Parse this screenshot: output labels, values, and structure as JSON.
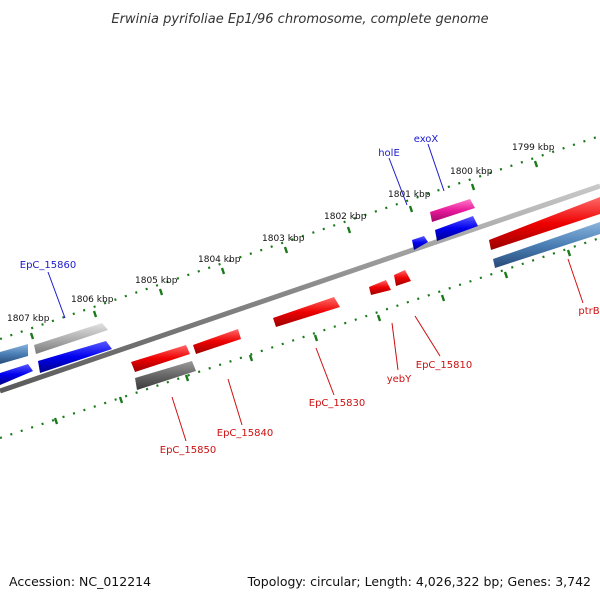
{
  "title": "Erwinia pyrifoliae Ep1/96 chromosome, complete genome",
  "footer": {
    "accession": "Accession: NC_012214",
    "summary": "Topology: circular; Length: 4,026,322 bp; Genes: 3,742"
  },
  "scale_labels": [
    "1799 kbp",
    "1800 kbp",
    "1801 kbp",
    "1802 kbp",
    "1803 kbp",
    "1804 kbp",
    "1805 kbp",
    "1806 kbp",
    "1807 kbp"
  ],
  "gene_labels": [
    "exoX",
    "holE",
    "EpC_15860",
    "ptrB",
    "EpC_15810",
    "yebY",
    "EpC_15830",
    "EpC_15840",
    "EpC_15850"
  ],
  "colors": {
    "background": "#ffffff",
    "backbone": "#8a8a8a",
    "tick_green": "#1a7a1a",
    "forward_gene": "#0000ee",
    "reverse_gene": "#ee0000",
    "gray_gene": "#b0b0b0",
    "dark_gray_gene": "#6a6a6a",
    "magenta_gene": "#e8189a",
    "steel_gene": "#4a7fb5",
    "label_blue": "#1a1acc",
    "label_red": "#cc1111"
  }
}
